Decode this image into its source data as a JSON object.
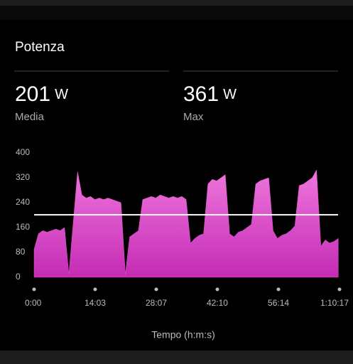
{
  "header": {
    "title": "Potenza"
  },
  "summary": [
    {
      "value": 201,
      "unit": "W",
      "label": "Media"
    },
    {
      "value": 361,
      "unit": "W",
      "label": "Max"
    }
  ],
  "chart_data": {
    "type": "area",
    "x_label": "Tempo (h:m:s)",
    "x": [
      0,
      60,
      120,
      180,
      240,
      300,
      360,
      420,
      480,
      540,
      600,
      660,
      720,
      780,
      840,
      900,
      960,
      1020,
      1080,
      1140,
      1200,
      1260,
      1320,
      1380,
      1440,
      1500,
      1560,
      1620,
      1680,
      1740,
      1800,
      1860,
      1920,
      1980,
      2040,
      2100,
      2160,
      2220,
      2280,
      2340,
      2400,
      2460,
      2520,
      2580,
      2640,
      2700,
      2760,
      2820,
      2880,
      2940,
      3000,
      3060,
      3120,
      3180,
      3240,
      3300,
      3360,
      3420,
      3480,
      3540,
      3600,
      3660,
      3720,
      3780,
      3840,
      3900,
      3960,
      4020,
      4080,
      4140,
      4200
    ],
    "series": [
      {
        "color": "#dc52cc",
        "values": [
          90,
          140,
          150,
          145,
          150,
          155,
          150,
          160,
          10,
          175,
          340,
          265,
          255,
          260,
          250,
          255,
          250,
          255,
          250,
          245,
          240,
          10,
          130,
          140,
          150,
          250,
          255,
          260,
          255,
          265,
          260,
          255,
          260,
          255,
          260,
          250,
          110,
          125,
          135,
          140,
          300,
          315,
          310,
          320,
          330,
          140,
          130,
          145,
          150,
          160,
          170,
          300,
          310,
          315,
          320,
          150,
          125,
          135,
          140,
          150,
          165,
          295,
          300,
          310,
          320,
          345,
          100,
          120,
          110,
          115,
          125
        ]
      }
    ],
    "xlim": [
      0,
      4217
    ],
    "xticks": [
      {
        "value": 0,
        "label": "0:00"
      },
      {
        "value": 843,
        "label": "14:03"
      },
      {
        "value": 1687,
        "label": "28:07"
      },
      {
        "value": 2530,
        "label": "42:10"
      },
      {
        "value": 3374,
        "label": "56:14"
      },
      {
        "value": 4217,
        "label": "1:10:17"
      }
    ],
    "ylim": [
      0,
      400
    ],
    "yticks": [
      0,
      80,
      160,
      240,
      320,
      400
    ]
  }
}
